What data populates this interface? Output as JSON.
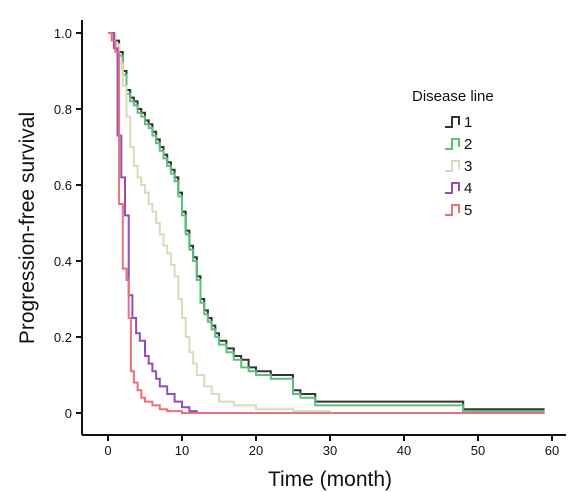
{
  "chart_data": {
    "type": "line",
    "xlabel": "Time (month)",
    "ylabel": "Progression-free survival",
    "xlim": [
      0,
      60
    ],
    "ylim": [
      0,
      1.0
    ],
    "x_ticks": [
      "0",
      "10",
      "20",
      "30",
      "40",
      "50",
      "60"
    ],
    "y_ticks": [
      "0",
      "0.2",
      "0.4",
      "0.6",
      "0.8",
      "1.0"
    ],
    "grid": false,
    "legend": {
      "title": "Disease line",
      "placement": "right"
    },
    "series": [
      {
        "name": "1",
        "color": "#333333",
        "x": [
          0,
          1,
          1.5,
          2,
          2.5,
          3,
          3.5,
          4,
          4.5,
          5,
          5.5,
          6,
          6.5,
          7,
          7.5,
          8,
          8.5,
          9,
          9.5,
          10,
          10.5,
          11,
          11.5,
          12,
          12.5,
          13,
          13.5,
          14,
          14.5,
          15,
          16,
          17,
          18,
          19,
          20,
          22,
          25,
          26,
          28,
          30,
          40,
          48,
          59
        ],
        "y": [
          1.0,
          0.98,
          0.95,
          0.9,
          0.85,
          0.83,
          0.82,
          0.8,
          0.79,
          0.77,
          0.76,
          0.74,
          0.72,
          0.7,
          0.68,
          0.66,
          0.64,
          0.62,
          0.58,
          0.53,
          0.48,
          0.44,
          0.41,
          0.36,
          0.3,
          0.27,
          0.25,
          0.23,
          0.21,
          0.19,
          0.17,
          0.15,
          0.14,
          0.12,
          0.11,
          0.1,
          0.06,
          0.05,
          0.03,
          0.03,
          0.03,
          0.01,
          0.01
        ]
      },
      {
        "name": "2",
        "color": "#5cbf7e",
        "x": [
          0,
          1,
          1.5,
          2,
          2.5,
          3,
          3.5,
          4,
          4.5,
          5,
          5.5,
          6,
          6.5,
          7,
          7.5,
          8,
          8.5,
          9,
          9.5,
          10,
          10.5,
          11,
          11.5,
          12,
          12.5,
          13,
          13.5,
          14,
          14.5,
          15,
          16,
          17,
          18,
          19,
          20,
          22,
          25,
          26,
          28,
          30,
          40,
          48,
          59
        ],
        "y": [
          1.0,
          0.97,
          0.94,
          0.89,
          0.84,
          0.82,
          0.81,
          0.79,
          0.78,
          0.76,
          0.75,
          0.73,
          0.71,
          0.69,
          0.67,
          0.65,
          0.63,
          0.61,
          0.57,
          0.52,
          0.47,
          0.43,
          0.4,
          0.35,
          0.29,
          0.26,
          0.24,
          0.22,
          0.2,
          0.18,
          0.16,
          0.14,
          0.12,
          0.11,
          0.1,
          0.09,
          0.05,
          0.04,
          0.02,
          0.02,
          0.02,
          0.005,
          0.005
        ]
      },
      {
        "name": "3",
        "color": "#d7ddb8",
        "x": [
          0,
          1,
          1.5,
          2,
          2.5,
          3,
          3.5,
          4,
          4.5,
          5,
          5.5,
          6,
          6.5,
          7,
          7.5,
          8,
          8.5,
          9,
          9.5,
          10,
          10.5,
          11,
          11.5,
          12,
          13,
          14,
          15,
          17,
          20,
          25,
          30,
          40,
          59
        ],
        "y": [
          1.0,
          0.97,
          0.92,
          0.86,
          0.78,
          0.7,
          0.65,
          0.62,
          0.6,
          0.58,
          0.55,
          0.53,
          0.5,
          0.47,
          0.44,
          0.42,
          0.39,
          0.36,
          0.3,
          0.25,
          0.2,
          0.16,
          0.13,
          0.1,
          0.07,
          0.05,
          0.03,
          0.02,
          0.01,
          0.005,
          0.0,
          0.0,
          0.0
        ]
      },
      {
        "name": "4",
        "color": "#8e4fb8",
        "x": [
          0,
          0.8,
          1.3,
          1.8,
          2.3,
          2.8,
          3.3,
          3.8,
          4.3,
          5,
          5.5,
          6,
          6.5,
          7,
          8,
          9,
          10,
          11,
          12,
          15,
          20,
          30,
          59
        ],
        "y": [
          1.0,
          0.96,
          0.73,
          0.62,
          0.52,
          0.31,
          0.25,
          0.21,
          0.19,
          0.15,
          0.13,
          0.11,
          0.09,
          0.07,
          0.05,
          0.03,
          0.015,
          0.005,
          0.0,
          0.0,
          0.0,
          0.0,
          0.0
        ]
      },
      {
        "name": "5",
        "color": "#e8727a",
        "x": [
          0,
          0.5,
          1,
          1.5,
          2,
          2.5,
          2.8,
          3.1,
          3.5,
          4,
          4.5,
          5,
          6,
          7,
          8,
          10,
          15,
          20,
          30,
          59
        ],
        "y": [
          1.0,
          0.98,
          0.95,
          0.55,
          0.38,
          0.35,
          0.25,
          0.11,
          0.08,
          0.06,
          0.04,
          0.03,
          0.02,
          0.01,
          0.005,
          0.0,
          0.0,
          0.0,
          0.0,
          0.0
        ]
      }
    ]
  }
}
